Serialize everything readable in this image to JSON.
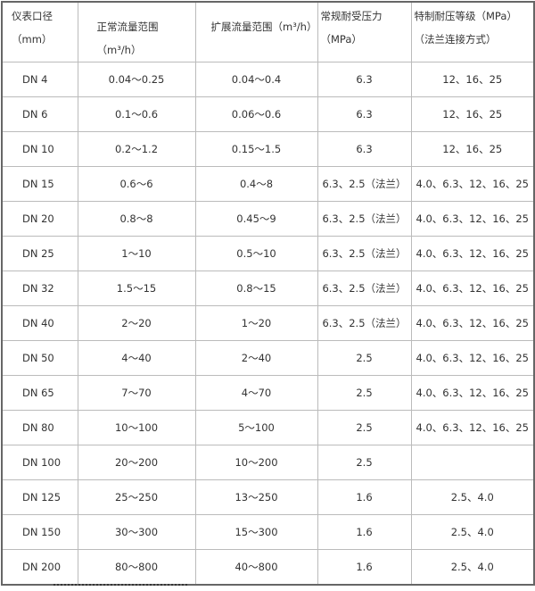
{
  "headers": [
    "仪表口径（mm）",
    "正常流量范围（m³/h）",
    "扩展流量范围（m³/h）",
    "常规耐受压力（MPa）",
    "特制耐压等级（MPa）（法兰连接方式）"
  ],
  "rows": [
    [
      "DN 4",
      "0.04～0.25",
      "0.04～0.4",
      "6.3",
      "12、16、25"
    ],
    [
      "DN 6",
      "0.1～0.6",
      "0.06～0.6",
      "6.3",
      "12、16、25"
    ],
    [
      "DN 10",
      "0.2～1.2",
      "0.15～1.5",
      "6.3",
      "12、16、25"
    ],
    [
      "DN 15",
      "0.6～6",
      "0.4～8",
      "6.3、2.5（法兰）",
      "4.0、6.3、12、16、25"
    ],
    [
      "DN 20",
      "0.8～8",
      "0.45～9",
      "6.3、2.5（法兰）",
      "4.0、6.3、12、16、25"
    ],
    [
      "DN 25",
      "1～10",
      "0.5～10",
      "6.3、2.5（法兰）",
      "4.0、6.3、12、16、25"
    ],
    [
      "DN 32",
      "1.5～15",
      "0.8～15",
      "6.3、2.5（法兰）",
      "4.0、6.3、12、16、25"
    ],
    [
      "DN 40",
      "2～20",
      "1～20",
      "6.3、2.5（法兰）",
      "4.0、6.3、12、16、25"
    ],
    [
      "DN 50",
      "4～40",
      "2～40",
      "2.5",
      "4.0、6.3、12、16、25"
    ],
    [
      "DN 65",
      "7～70",
      "4～70",
      "2.5",
      "4.0、6.3、12、16、25"
    ],
    [
      "DN 80",
      "10～100",
      "5～100",
      "2.5",
      "4.0、6.3、12、16、25"
    ],
    [
      "DN 100",
      "20～200",
      "10～200",
      "2.5",
      ""
    ],
    [
      "DN 125",
      "25～250",
      "13～250",
      "1.6",
      "2.5、4.0"
    ],
    [
      "DN 150",
      "30～300",
      "15～300",
      "1.6",
      "2.5、4.0"
    ],
    [
      "DN 200",
      "80～800",
      "40～800",
      "1.6",
      "2.5、4.0"
    ]
  ]
}
